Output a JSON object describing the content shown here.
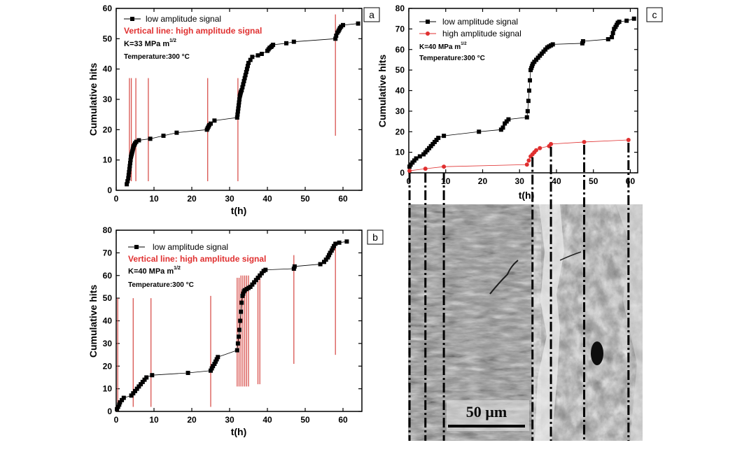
{
  "colors": {
    "black_series": "#000000",
    "red_series": "#e03030",
    "red_lines": "#d9534f",
    "axis": "#000000"
  },
  "chart_data": [
    {
      "panel": "a",
      "type": "line",
      "xlabel": "t(h)",
      "ylabel": "Cumulative hits",
      "xlim": [
        0,
        65
      ],
      "ylim": [
        0,
        60
      ],
      "xticks": [
        0,
        10,
        20,
        30,
        40,
        50,
        60
      ],
      "yticks": [
        0,
        10,
        20,
        30,
        40,
        50,
        60
      ],
      "legend": {
        "low": "low amplitude signal",
        "high": "Vertical line: high amplitude signal"
      },
      "annotations": {
        "k_main": "K=33 MPa m",
        "k_sup": "1/2",
        "temperature": "Temperature:300 °C"
      },
      "series": [
        {
          "name": "low amplitude signal",
          "x": [
            2.8,
            3.0,
            3.2,
            3.3,
            3.4,
            3.5,
            3.6,
            3.7,
            3.8,
            3.9,
            4.0,
            4.1,
            4.2,
            4.3,
            4.4,
            4.5,
            4.6,
            4.8,
            5.0,
            5.3,
            6.0,
            9.0,
            12.5,
            16.0,
            24.0,
            24.2,
            24.4,
            24.6,
            25.0,
            26.0,
            32.0,
            32.1,
            32.2,
            32.3,
            32.4,
            32.5,
            32.6,
            32.7,
            32.8,
            32.9,
            33.0,
            33.2,
            33.4,
            33.6,
            33.8,
            34.0,
            34.2,
            34.4,
            34.6,
            34.8,
            35.0,
            35.5,
            36.0,
            37.5,
            38.5,
            40.0,
            40.3,
            40.6,
            41.0,
            41.2,
            41.5,
            45.0,
            47.0,
            58.0,
            58.2,
            58.5,
            58.8,
            59.0,
            59.2,
            59.5,
            60.0,
            64.0
          ],
          "y": [
            2,
            3,
            4,
            5,
            6,
            7,
            8,
            9,
            10,
            11,
            11.5,
            12,
            12.5,
            13,
            13.5,
            14,
            14.5,
            15,
            15.5,
            16,
            16.5,
            17,
            18,
            19,
            20,
            20.5,
            21,
            21.5,
            22,
            23,
            24,
            25,
            26,
            27,
            28,
            29,
            30,
            31,
            31.5,
            32,
            32.5,
            33,
            34,
            35,
            36,
            37,
            38,
            39,
            40,
            41,
            42,
            43,
            44,
            44.5,
            45,
            46,
            46.5,
            47,
            47.3,
            47.6,
            48,
            48.5,
            49,
            50,
            51,
            52,
            52.5,
            53,
            53.5,
            54,
            54.5,
            55
          ]
        },
        {
          "name": "high amplitude signal (vertical lines)",
          "x": [
            3.5,
            4.0,
            5.2,
            8.5,
            24.2,
            32.2,
            58.0
          ],
          "y_start": [
            3,
            3,
            3,
            3,
            3,
            3,
            18
          ],
          "y_end": [
            37,
            37,
            37,
            37,
            37,
            37,
            58
          ]
        }
      ]
    },
    {
      "panel": "b",
      "type": "line",
      "xlabel": "t(h)",
      "ylabel": "Cumulative hits",
      "xlim": [
        0,
        65
      ],
      "ylim": [
        0,
        80
      ],
      "xticks": [
        0,
        10,
        20,
        30,
        40,
        50,
        60
      ],
      "yticks": [
        0,
        10,
        20,
        30,
        40,
        50,
        60,
        70,
        80
      ],
      "legend": {
        "low": "low amplitude signal",
        "high": "Vertical line: high amplitude signal"
      },
      "annotations": {
        "k_main": "K=40 MPa m",
        "k_sup": "1/2",
        "temperature": "Temperature:300 °C"
      },
      "series": [
        {
          "name": "low amplitude signal",
          "x": [
            0.2,
            0.5,
            0.8,
            1.0,
            1.5,
            2.0,
            4.0,
            4.5,
            5.0,
            5.5,
            6.0,
            6.5,
            7.0,
            7.5,
            8.0,
            9.5,
            19.0,
            25.0,
            25.3,
            25.6,
            26.0,
            26.3,
            26.6,
            26.9,
            32.0,
            32.2,
            32.4,
            32.6,
            32.8,
            33.0,
            33.2,
            33.4,
            33.6,
            33.8,
            34.0,
            34.5,
            35.0,
            35.5,
            36.0,
            36.5,
            37.0,
            37.5,
            38.0,
            38.5,
            39.0,
            39.5,
            47.0,
            47.2,
            54.0,
            55.0,
            55.5,
            56.0,
            56.3,
            56.6,
            57.0,
            57.3,
            57.6,
            58.0,
            59.0,
            61.0
          ],
          "y": [
            1,
            2,
            3,
            4,
            5,
            6,
            7,
            8,
            9,
            10,
            11,
            12,
            13,
            14,
            15,
            16,
            17,
            18,
            19,
            20,
            21,
            22,
            23,
            24,
            27,
            30,
            33,
            36,
            40,
            44,
            48,
            51,
            52,
            53,
            53.5,
            54,
            54.5,
            55,
            56,
            57,
            58,
            59,
            60,
            61,
            62,
            62.5,
            63,
            64,
            65,
            66,
            67,
            68,
            69,
            70,
            71,
            72,
            73,
            74,
            74.5,
            75
          ]
        },
        {
          "name": "high amplitude signal (vertical lines)",
          "x": [
            0.4,
            4.5,
            9.2,
            25.0,
            32.0,
            32.5,
            33.0,
            33.5,
            34.0,
            34.5,
            35.0,
            37.5,
            38.0,
            47.0,
            58.0
          ],
          "y_start": [
            0,
            2,
            2,
            2,
            11,
            11,
            11,
            11,
            11,
            11,
            11,
            12,
            12,
            21,
            25
          ],
          "y_end": [
            50,
            50,
            50,
            51,
            59,
            59,
            60,
            60,
            60,
            60,
            60,
            60,
            60,
            69,
            75
          ]
        }
      ]
    },
    {
      "panel": "c",
      "type": "line",
      "xlabel": "t(h)",
      "ylabel": "Cumulative hits",
      "xlim": [
        0,
        62
      ],
      "ylim": [
        0,
        80
      ],
      "xticks": [
        0,
        10,
        20,
        30,
        40,
        50,
        60
      ],
      "yticks": [
        0,
        10,
        20,
        30,
        40,
        50,
        60,
        70,
        80
      ],
      "legend": {
        "low": "low amplitude signal",
        "high": "high amplitude signal"
      },
      "annotations": {
        "k_main": "K=40 MPa m",
        "k_sup": "1/2",
        "temperature": "Temperature:300 °C"
      },
      "series": [
        {
          "name": "low amplitude signal",
          "x": [
            0.2,
            0.5,
            1.0,
            1.5,
            2.0,
            3.0,
            4.0,
            4.5,
            5.0,
            5.5,
            6.0,
            6.5,
            7.0,
            7.5,
            8.0,
            9.5,
            19.0,
            25.0,
            25.5,
            26.0,
            26.5,
            27.0,
            32.0,
            32.2,
            32.4,
            32.6,
            32.8,
            33.0,
            33.2,
            33.4,
            33.6,
            34.0,
            34.5,
            35.0,
            35.5,
            36.0,
            36.5,
            37.0,
            37.5,
            38.0,
            38.5,
            39.0,
            47.0,
            47.2,
            54.0,
            55.0,
            55.3,
            55.6,
            56.0,
            56.3,
            56.6,
            57.0,
            59.0,
            61.0
          ],
          "y": [
            3,
            4,
            5,
            6,
            7,
            8,
            9,
            10,
            11,
            12,
            13,
            14,
            15,
            16,
            17,
            18,
            20,
            21,
            22,
            24,
            25,
            26,
            27,
            30,
            35,
            40,
            45,
            50,
            51,
            52,
            53,
            54,
            55,
            56,
            57,
            58,
            59,
            60,
            61,
            61.5,
            62,
            62.5,
            63,
            64,
            65,
            66,
            68,
            70,
            71,
            72,
            73,
            73.5,
            74,
            75
          ]
        },
        {
          "name": "high amplitude signal",
          "x": [
            0.2,
            4.5,
            9.5,
            32.0,
            32.5,
            33.0,
            33.5,
            34.0,
            34.5,
            35.5,
            38.0,
            38.5,
            47.5,
            59.5
          ],
          "y": [
            1,
            2,
            3,
            4,
            6,
            8,
            9,
            10,
            11,
            12,
            13,
            14,
            15,
            16
          ]
        }
      ]
    }
  ],
  "panels": {
    "a": {
      "label": "a"
    },
    "b": {
      "label": "b"
    },
    "c": {
      "label": "c"
    }
  },
  "micrograph": {
    "scale_label": "50 µm"
  }
}
